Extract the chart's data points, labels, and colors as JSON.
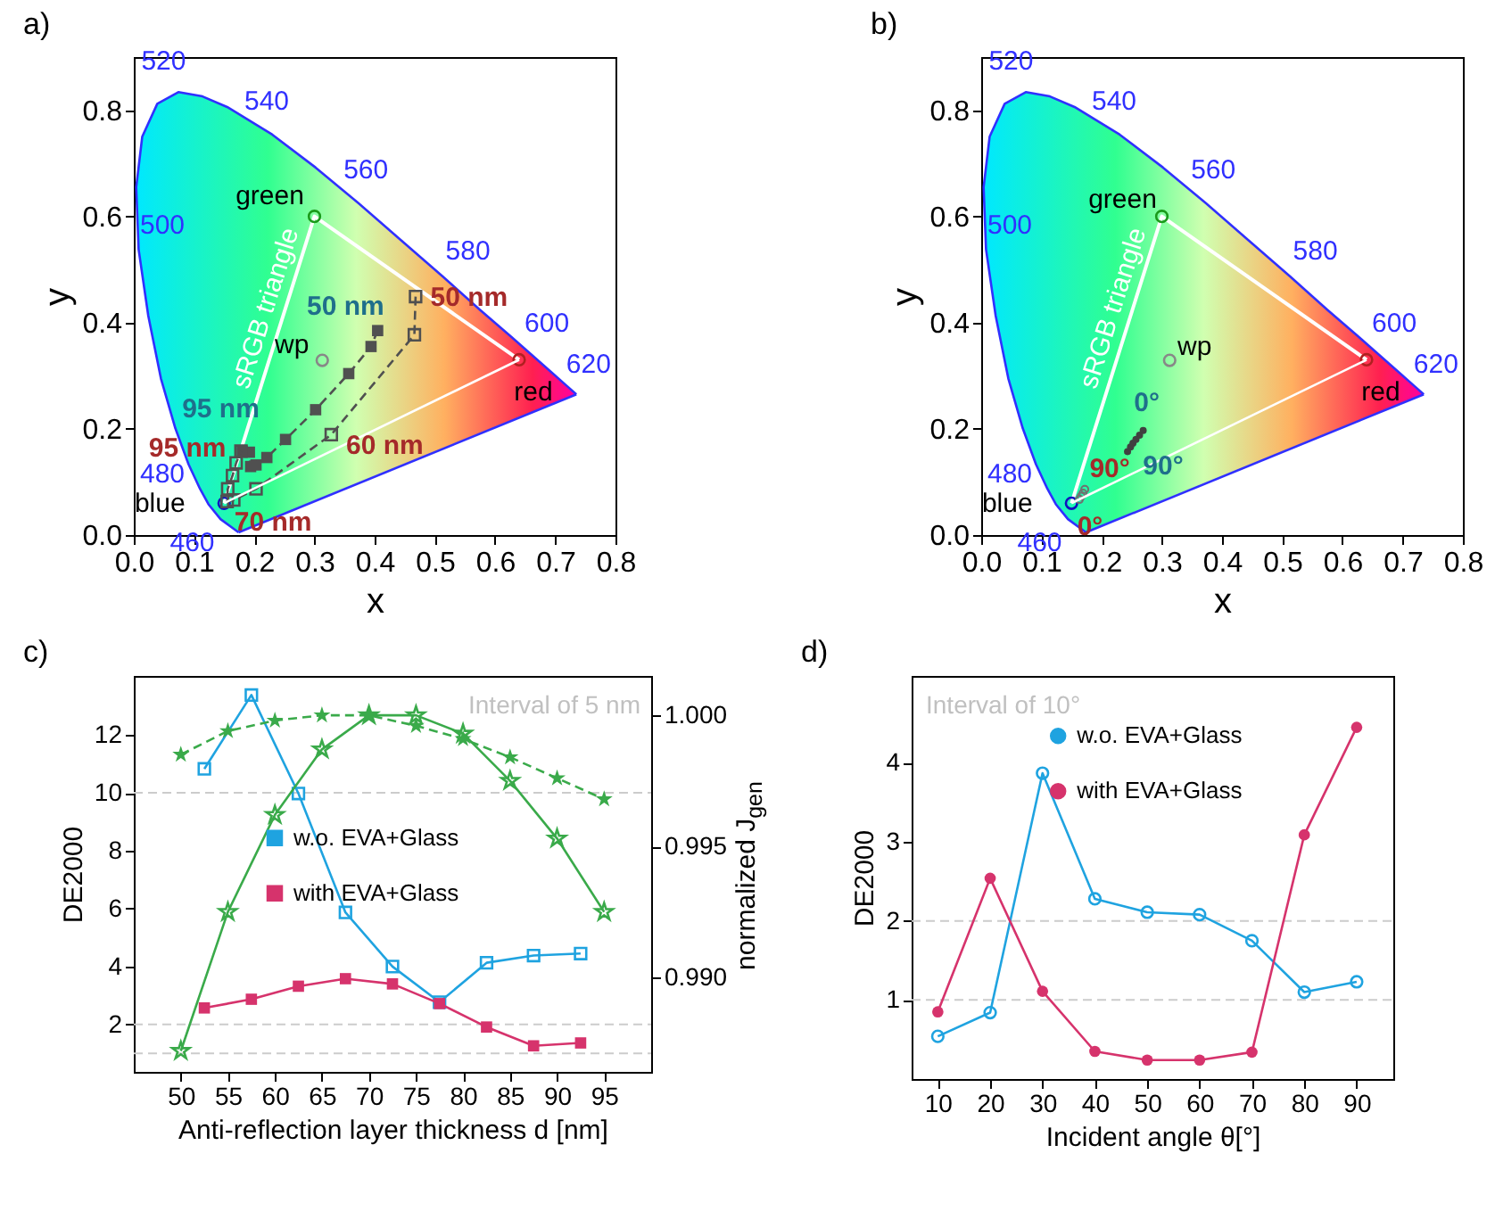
{
  "chart_data": [
    {
      "type": "scatter",
      "title": "a)",
      "xlabel": "x",
      "ylabel": "y",
      "xlim": [
        0,
        0.8
      ],
      "ylim": [
        0,
        0.9
      ],
      "xticks": [
        {
          "value": 0,
          "label": "0.0"
        },
        0.1,
        0.2,
        0.3,
        0.4,
        0.5,
        0.6,
        0.7,
        0.8
      ],
      "yticks": [
        {
          "value": 0,
          "label": "0.0"
        },
        0.2,
        0.4,
        0.6,
        0.8
      ],
      "legend": false,
      "series": [
        {
          "type": "line",
          "color": "#3030ff",
          "marker": "none",
          "x": [
            0.174,
            0.144,
            0.124,
            0.11,
            0.091,
            0.069,
            0.045,
            0.024,
            0.008,
            0.004,
            0.014,
            0.039,
            0.074,
            0.114,
            0.155,
            0.23,
            0.302,
            0.373,
            0.444,
            0.513,
            0.575,
            0.627,
            0.666,
            0.692,
            0.719,
            0.735
          ],
          "values": [
            0.005,
            0.03,
            0.058,
            0.087,
            0.133,
            0.201,
            0.295,
            0.413,
            0.538,
            0.655,
            0.75,
            0.812,
            0.834,
            0.826,
            0.806,
            0.754,
            0.692,
            0.625,
            0.555,
            0.487,
            0.424,
            0.373,
            0.334,
            0.308,
            0.281,
            0.265
          ]
        },
        {
          "type": "line",
          "name": "sRGB triangle",
          "color": "#ffffff",
          "marker": "none",
          "x": [
            0.15,
            0.3,
            0.64
          ],
          "values": [
            0.06,
            0.6,
            0.33
          ]
        },
        {
          "marker": "circle",
          "colors": [
            "#1a9a1a",
            "#b02020",
            "#1010c0",
            "#888888"
          ],
          "x": [
            0.3,
            0.64,
            0.15,
            0.313
          ],
          "values": [
            0.6,
            0.33,
            0.06,
            0.329
          ]
        },
        {
          "type": "line",
          "line_style": "dashed",
          "marker": "square",
          "color": "#505050",
          "x": [
            0.405,
            0.394,
            0.357,
            0.302,
            0.252,
            0.221,
            0.203,
            0.194,
            0.192,
            0.18
          ],
          "values": [
            0.385,
            0.355,
            0.304,
            0.236,
            0.18,
            0.146,
            0.132,
            0.129,
            0.156,
            0.158
          ]
        },
        {
          "type": "line",
          "line_style": "dashed",
          "marker": "square",
          "color": "#505050",
          "x": [
            0.468,
            0.466,
            0.328,
            0.203,
            0.166,
            0.155,
            0.156,
            0.164,
            0.17,
            0.178
          ],
          "values": [
            0.449,
            0.377,
            0.189,
            0.087,
            0.066,
            0.063,
            0.087,
            0.112,
            0.136,
            0.158
          ]
        },
        {
          "type": "line",
          "color": "#3030ff",
          "marker": "none",
          "x": [
            0.174,
            0.735
          ],
          "values": [
            0.005,
            0.265
          ]
        },
        {
          "type": "line",
          "color": "#ffffff",
          "marker": "none",
          "x": [
            0.15,
            0.64
          ],
          "values": [
            0.06,
            0.33
          ]
        }
      ],
      "annotations": [
        {
          "text": "460",
          "x": 0.144,
          "y": 0.03
        },
        {
          "text": "480",
          "x": 0.091,
          "y": 0.133
        },
        {
          "text": "500",
          "x": 0.008,
          "y": 0.538
        },
        {
          "text": "520",
          "x": 0.074,
          "y": 0.834
        },
        {
          "text": "540",
          "x": 0.23,
          "y": 0.754
        },
        {
          "text": "560",
          "x": 0.373,
          "y": 0.625
        },
        {
          "text": "580",
          "x": 0.513,
          "y": 0.487
        },
        {
          "text": "600",
          "x": 0.627,
          "y": 0.373
        },
        {
          "text": "620",
          "x": 0.692,
          "y": 0.308
        },
        {
          "text": "green",
          "x": 0.3,
          "y": 0.6
        },
        {
          "text": "red",
          "x": 0.64,
          "y": 0.33
        },
        {
          "text": "blue",
          "x": 0.15,
          "y": 0.06
        },
        {
          "text": "wp",
          "x": 0.313,
          "y": 0.329
        },
        {
          "text": "50 nm",
          "x": 0.405,
          "y": 0.385
        },
        {
          "text": "95 nm",
          "x": 0.18,
          "y": 0.158
        },
        {
          "text": "50 nm",
          "x": 0.468,
          "y": 0.449
        },
        {
          "text": "60 nm",
          "x": 0.328,
          "y": 0.189
        },
        {
          "text": "70 nm",
          "x": 0.166,
          "y": 0.066
        },
        {
          "text": "95 nm",
          "x": 0.178,
          "y": 0.158
        }
      ]
    },
    {
      "type": "scatter",
      "title": "b)",
      "xlabel": "x",
      "ylabel": "y",
      "xlim": [
        0,
        0.8
      ],
      "ylim": [
        0,
        0.9
      ],
      "xticks": [
        {
          "value": 0,
          "label": "0.0"
        },
        0.1,
        0.2,
        0.3,
        0.4,
        0.5,
        0.6,
        0.7,
        0.8
      ],
      "yticks": [
        {
          "value": 0,
          "label": "0.0"
        },
        0.2,
        0.4,
        0.6,
        0.8
      ],
      "legend": false,
      "series": [
        {
          "type": "line",
          "color": "#3030ff",
          "marker": "none",
          "x": [
            0.174,
            0.144,
            0.124,
            0.11,
            0.091,
            0.069,
            0.045,
            0.024,
            0.008,
            0.004,
            0.014,
            0.039,
            0.074,
            0.114,
            0.155,
            0.23,
            0.302,
            0.373,
            0.444,
            0.513,
            0.575,
            0.627,
            0.666,
            0.692,
            0.719,
            0.735
          ],
          "values": [
            0.005,
            0.03,
            0.058,
            0.087,
            0.133,
            0.201,
            0.295,
            0.413,
            0.538,
            0.655,
            0.75,
            0.812,
            0.834,
            0.826,
            0.806,
            0.754,
            0.692,
            0.625,
            0.555,
            0.487,
            0.424,
            0.373,
            0.334,
            0.308,
            0.281,
            0.265
          ]
        },
        {
          "type": "line",
          "name": "sRGB triangle",
          "color": "#ffffff",
          "marker": "none",
          "x": [
            0.15,
            0.3,
            0.64
          ],
          "values": [
            0.06,
            0.6,
            0.33
          ]
        },
        {
          "marker": "circle",
          "colors": [
            "#1a9a1a",
            "#b02020",
            "#1010c0",
            "#888888"
          ],
          "x": [
            0.3,
            0.64,
            0.15,
            0.313
          ],
          "values": [
            0.6,
            0.33,
            0.06,
            0.329
          ]
        },
        {
          "marker": "circle",
          "color": "#404040",
          "x": [
            0.269,
            0.263,
            0.257,
            0.252,
            0.248,
            0.243
          ],
          "values": [
            0.197,
            0.188,
            0.18,
            0.173,
            0.166,
            0.157
          ]
        },
        {
          "marker": "circle",
          "color": "#707070",
          "x": [
            0.163,
            0.166,
            0.169,
            0.172
          ],
          "values": [
            0.067,
            0.073,
            0.079,
            0.086
          ]
        },
        {
          "type": "line",
          "color": "#3030ff",
          "marker": "none",
          "x": [
            0.174,
            0.735
          ],
          "values": [
            0.005,
            0.265
          ]
        },
        {
          "type": "line",
          "color": "#ffffff",
          "marker": "none",
          "x": [
            0.15,
            0.64
          ],
          "values": [
            0.06,
            0.33
          ]
        }
      ],
      "annotations": [
        {
          "text": "460",
          "x": 0.144,
          "y": 0.03
        },
        {
          "text": "480",
          "x": 0.091,
          "y": 0.133
        },
        {
          "text": "500",
          "x": 0.008,
          "y": 0.538
        },
        {
          "text": "520",
          "x": 0.074,
          "y": 0.834
        },
        {
          "text": "540",
          "x": 0.23,
          "y": 0.754
        },
        {
          "text": "560",
          "x": 0.373,
          "y": 0.625
        },
        {
          "text": "580",
          "x": 0.513,
          "y": 0.487
        },
        {
          "text": "600",
          "x": 0.627,
          "y": 0.373
        },
        {
          "text": "620",
          "x": 0.692,
          "y": 0.308
        },
        {
          "text": "green",
          "x": 0.3,
          "y": 0.6
        },
        {
          "text": "red",
          "x": 0.64,
          "y": 0.33
        },
        {
          "text": "blue",
          "x": 0.15,
          "y": 0.06
        },
        {
          "text": "wp",
          "x": 0.313,
          "y": 0.329
        },
        {
          "text": "0°",
          "x": 0.269,
          "y": 0.197
        },
        {
          "text": "90°",
          "x": 0.243,
          "y": 0.157
        },
        {
          "text": "0°",
          "x": 0.163,
          "y": 0.067
        },
        {
          "text": "90°",
          "x": 0.172,
          "y": 0.086
        }
      ]
    },
    {
      "type": "line",
      "title": "c)",
      "xlabel": "Anti-reflection layer thickness d [nm]",
      "ylabel": "DE2000",
      "y2label": "normalized J$_{gen}$",
      "xlim": [
        45,
        100
      ],
      "xticks": [
        50,
        55,
        60,
        65,
        70,
        75,
        80,
        85,
        90,
        95
      ],
      "ylim": [
        0.36,
        14.04
      ],
      "yticks": [
        2,
        4,
        6,
        8,
        10,
        12
      ],
      "y2lim": [
        0.9864,
        1.0015
      ],
      "y2ticks": [
        {
          "value": 0.99,
          "label": "0.990"
        },
        {
          "value": 0.995,
          "label": "0.995"
        },
        {
          "value": 1,
          "label": "1.000"
        }
      ],
      "legend": "center",
      "annotations": [
        "Interval of 5 nm"
      ],
      "ref_lines": [
        {
          "axis": "y",
          "value": 10,
          "color": "#cccccc",
          "line_style": "dashed"
        },
        {
          "axis": "y",
          "value": 2,
          "color": "#cccccc",
          "line_style": "dashed"
        },
        {
          "axis": "y",
          "value": 1,
          "color": "#cccccc",
          "line_style": "dashed"
        }
      ],
      "series": [
        {
          "name": "w.o. EVA+Glass",
          "color": "#1fa3e0",
          "marker": "square",
          "x": [
            52.5,
            57.5,
            62.5,
            67.5,
            72.5,
            77.5,
            82.5,
            87.5,
            92.5
          ],
          "values": [
            10.83,
            13.38,
            9.98,
            5.87,
            4.0,
            2.77,
            4.13,
            4.38,
            4.45
          ]
        },
        {
          "name": "with EVA+Glass",
          "color": "#d6336c",
          "marker": "square",
          "x": [
            52.5,
            57.5,
            62.5,
            67.5,
            72.5,
            77.5,
            82.5,
            87.5,
            92.5
          ],
          "values": [
            2.57,
            2.87,
            3.32,
            3.58,
            3.4,
            2.72,
            1.91,
            1.26,
            1.36
          ]
        },
        {
          "axis": "y2",
          "color": "#3aaa4a",
          "marker": "star",
          "x": [
            50,
            55,
            60,
            65,
            70,
            75,
            80,
            85,
            90,
            95
          ],
          "values": [
            0.9872,
            0.9925,
            0.9962,
            0.9987,
            1.0,
            1.0,
            0.9993,
            0.9975,
            0.9953,
            0.9925
          ]
        },
        {
          "axis": "y2",
          "color": "#3aaa4a",
          "marker": "star",
          "line_style": "dashed",
          "x": [
            50,
            55,
            60,
            65,
            70,
            75,
            80,
            85,
            90,
            95
          ],
          "values": [
            0.9985,
            0.9994,
            0.9998,
            1.0,
            1.0,
            0.9996,
            0.9991,
            0.9984,
            0.9976,
            0.9968
          ]
        }
      ]
    },
    {
      "type": "line",
      "title": "d)",
      "xlabel": "Incident angle θ[°]",
      "ylabel": "DE2000",
      "xlim": [
        5,
        97
      ],
      "xticks": [
        10,
        20,
        30,
        40,
        50,
        60,
        70,
        80,
        90
      ],
      "ylim": [
        0,
        5.1
      ],
      "yticks": [
        1,
        2,
        3,
        4
      ],
      "legend": "top",
      "annotations": [
        "Interval of 10°"
      ],
      "ref_lines": [
        {
          "axis": "y",
          "value": 2,
          "color": "#cccccc",
          "line_style": "dashed"
        },
        {
          "axis": "y",
          "value": 1,
          "color": "#cccccc",
          "line_style": "dashed"
        }
      ],
      "series": [
        {
          "name": "w.o. EVA+Glass",
          "color": "#1fa3e0",
          "marker": "circle",
          "x": [
            10,
            20,
            30,
            40,
            50,
            60,
            70,
            80,
            90
          ],
          "values": [
            0.54,
            0.84,
            3.87,
            2.28,
            2.11,
            2.08,
            1.75,
            1.1,
            1.23
          ]
        },
        {
          "name": "with EVA+Glass",
          "color": "#d6336c",
          "marker": "circle",
          "x": [
            10,
            20,
            30,
            40,
            50,
            60,
            70,
            80,
            90
          ],
          "values": [
            0.85,
            2.54,
            1.11,
            0.35,
            0.24,
            0.24,
            0.34,
            3.09,
            4.45
          ]
        }
      ]
    }
  ]
}
